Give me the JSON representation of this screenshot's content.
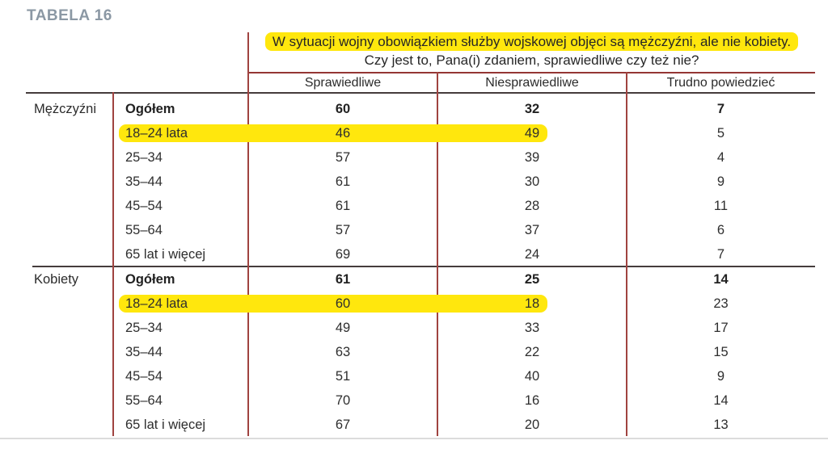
{
  "title": "TABELA 16",
  "question": {
    "line1": "W sytuacji wojny obowiązkiem służby wojskowej objęci są mężczyźni, ale nie kobiety.",
    "line2": "Czy jest to, Pana(i) zdaniem, sprawiedliwe czy też nie?"
  },
  "columns": [
    "Sprawiedliwe",
    "Niesprawiedliwe",
    "Trudno powiedzieć"
  ],
  "groups": [
    {
      "label": "Mężczyźni",
      "rows": [
        {
          "label": "Ogółem",
          "values": [
            60,
            32,
            7
          ],
          "bold": true
        },
        {
          "label": "18–24 lata",
          "values": [
            46,
            49,
            5
          ],
          "highlight": true
        },
        {
          "label": "25–34",
          "values": [
            57,
            39,
            4
          ]
        },
        {
          "label": "35–44",
          "values": [
            61,
            30,
            9
          ]
        },
        {
          "label": "45–54",
          "values": [
            61,
            28,
            11
          ]
        },
        {
          "label": "55–64",
          "values": [
            57,
            37,
            6
          ]
        },
        {
          "label": "65 lat i więcej",
          "values": [
            69,
            24,
            7
          ]
        }
      ]
    },
    {
      "label": "Kobiety",
      "rows": [
        {
          "label": "Ogółem",
          "values": [
            61,
            25,
            14
          ],
          "bold": true
        },
        {
          "label": "18–24 lata",
          "values": [
            60,
            18,
            23
          ],
          "highlight": true
        },
        {
          "label": "25–34",
          "values": [
            49,
            33,
            17
          ]
        },
        {
          "label": "35–44",
          "values": [
            63,
            22,
            15
          ]
        },
        {
          "label": "45–54",
          "values": [
            51,
            40,
            9
          ]
        },
        {
          "label": "55–64",
          "values": [
            70,
            16,
            14
          ]
        },
        {
          "label": "65 lat i więcej",
          "values": [
            67,
            20,
            13
          ]
        }
      ]
    }
  ],
  "colors": {
    "accent_red_vertical": "#a04340",
    "accent_red_horizontal": "#943634",
    "line_dark": "#453c3c",
    "line_light": "#dcdcdc",
    "highlight_yellow": "#ffe70d",
    "title_gray": "#8b98a4"
  }
}
